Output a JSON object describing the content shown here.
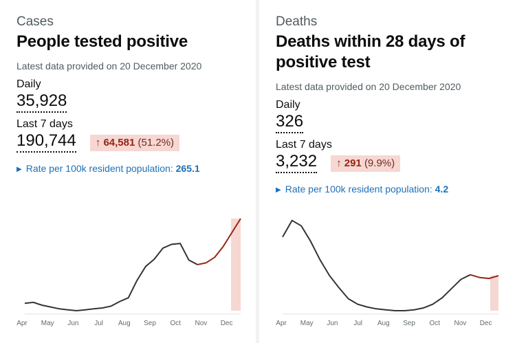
{
  "cases": {
    "caption": "Cases",
    "title": "People tested positive",
    "updated": "Latest data provided on 20 December 2020",
    "daily_label": "Daily",
    "daily_value": "35,928",
    "week_label": "Last 7 days",
    "week_value": "190,744",
    "change_arrow": "↑",
    "change_value": "64,581",
    "change_pct": "(51.2%)",
    "rate_label": "Rate per 100k resident population:",
    "rate_value": "265.1"
  },
  "deaths": {
    "caption": "Deaths",
    "title_line1": "Deaths within 28 days of",
    "title_line2": "positive test",
    "updated": "Latest data provided on 20 December 2020",
    "daily_label": "Daily",
    "daily_value": "326",
    "week_label": "Last 7 days",
    "week_value": "3,232",
    "change_arrow": "↑",
    "change_value": "291",
    "change_pct": "(9.9%)",
    "rate_label": "Rate per 100k resident population:",
    "rate_value": "4.2"
  },
  "colors": {
    "line": "#333333",
    "highlight_line": "#942514",
    "highlight_fill": "#f6d7d2",
    "link": "#1d70b8"
  },
  "chart_data": [
    {
      "type": "line",
      "name": "cases",
      "x": [
        "Apr",
        "Apr",
        "May",
        "May",
        "Jun",
        "Jun",
        "Jul",
        "Jul",
        "Aug",
        "Aug",
        "Sep",
        "Sep",
        "Sep",
        "Oct",
        "Oct",
        "Oct",
        "Oct",
        "Nov",
        "Nov",
        "Nov",
        "Nov",
        "Dec",
        "Dec",
        "Dec",
        "Dec",
        "Dec"
      ],
      "values": [
        0.08,
        0.09,
        0.06,
        0.04,
        0.02,
        0.01,
        0.0,
        0.01,
        0.02,
        0.03,
        0.05,
        0.1,
        0.14,
        0.33,
        0.48,
        0.56,
        0.68,
        0.72,
        0.73,
        0.55,
        0.5,
        0.52,
        0.58,
        0.7,
        0.85,
        1.0
      ],
      "tick_labels": [
        "Apr",
        "May",
        "Jun",
        "Jul",
        "Aug",
        "Sep",
        "Oct",
        "Nov",
        "Dec"
      ],
      "highlight": "last 7 days",
      "ylim": [
        0,
        1
      ]
    },
    {
      "type": "line",
      "name": "deaths",
      "x": [
        "Apr",
        "Apr",
        "Apr",
        "Apr",
        "May",
        "May",
        "May",
        "Jun",
        "Jun",
        "Jul",
        "Jul",
        "Aug",
        "Aug",
        "Sep",
        "Sep",
        "Oct",
        "Oct",
        "Oct",
        "Nov",
        "Nov",
        "Nov",
        "Dec",
        "Dec",
        "Dec"
      ],
      "values": [
        0.8,
        0.98,
        0.92,
        0.75,
        0.55,
        0.38,
        0.25,
        0.13,
        0.07,
        0.04,
        0.02,
        0.01,
        0.0,
        0.0,
        0.01,
        0.03,
        0.07,
        0.14,
        0.24,
        0.34,
        0.39,
        0.36,
        0.35,
        0.38
      ],
      "tick_labels": [
        "Apr",
        "May",
        "Jun",
        "Jul",
        "Aug",
        "Sep",
        "Oct",
        "Nov",
        "Dec"
      ],
      "highlight": "last 7 days",
      "ylim": [
        0,
        1
      ]
    }
  ]
}
